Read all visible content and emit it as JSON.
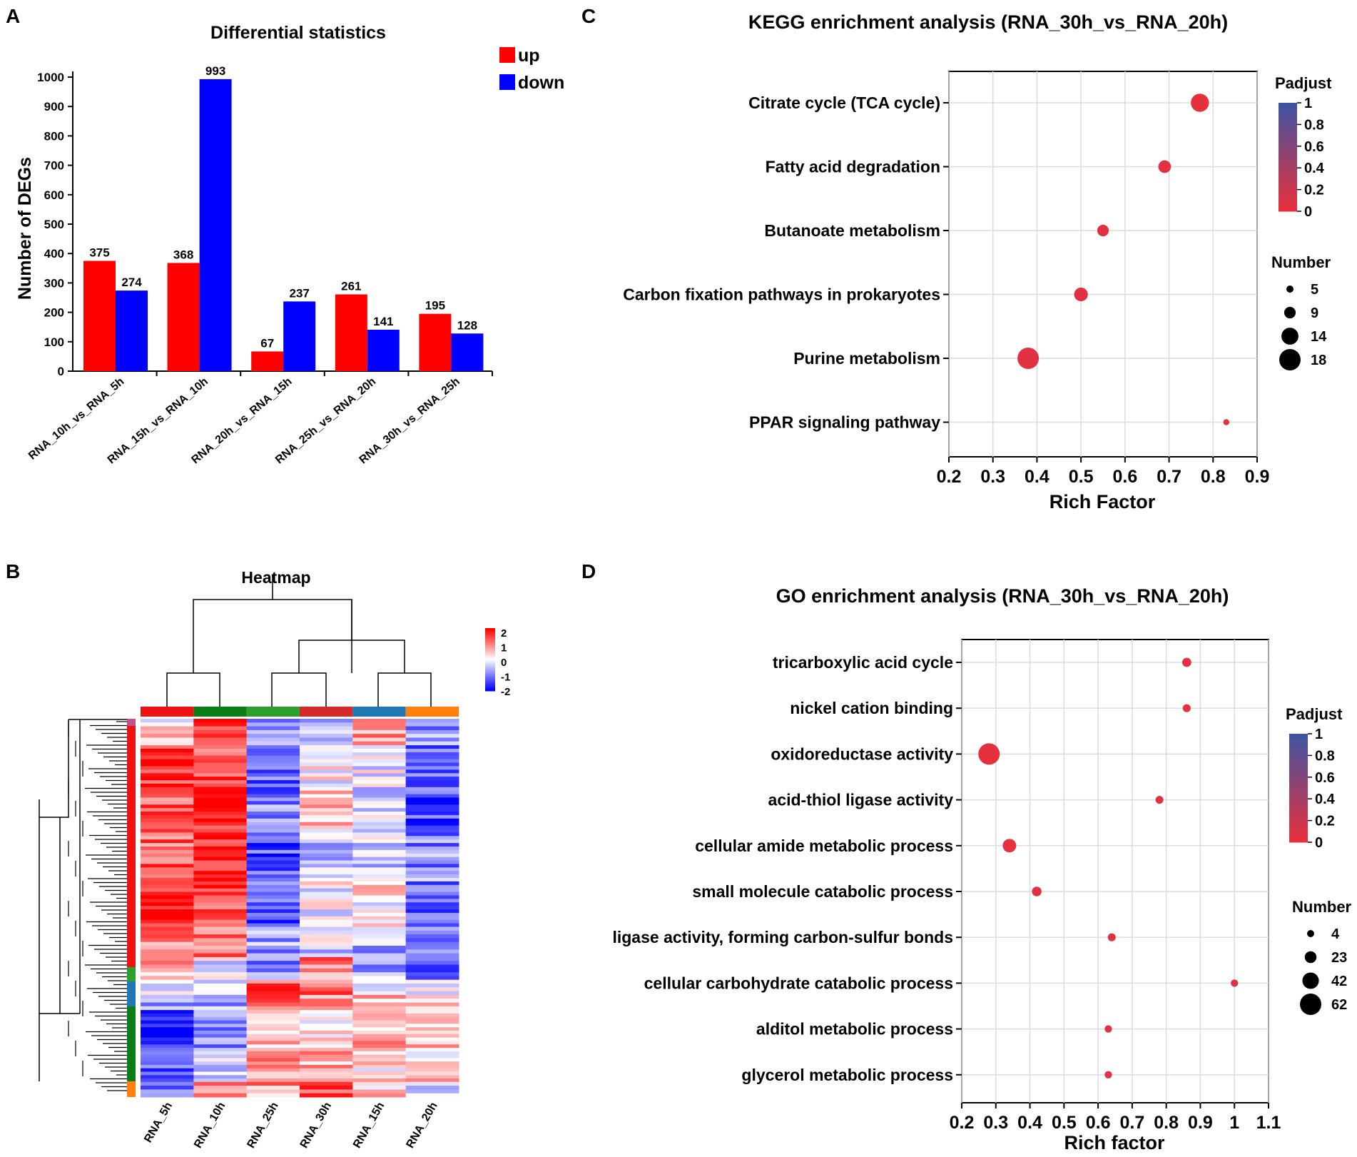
{
  "panels": {
    "a": "A",
    "b": "B",
    "c": "C",
    "d": "D"
  },
  "chart_data": [
    {
      "type": "bar",
      "title": "Differential statistics",
      "xlabel": "",
      "ylabel": "Number of DEGs",
      "ylim": [
        0,
        1000
      ],
      "yticks": [
        0,
        100,
        200,
        300,
        400,
        500,
        600,
        700,
        800,
        900,
        1000
      ],
      "categories": [
        "RNA_10h_vs_RNA_5h",
        "RNA_15h_vs_RNA_10h",
        "RNA_20h_vs_RNA_15h",
        "RNA_25h_vs_RNA_20h",
        "RNA_30h_vs_RNA_25h"
      ],
      "series": [
        {
          "name": "up",
          "color": "#ff0000",
          "values": [
            375,
            368,
            67,
            261,
            195
          ]
        },
        {
          "name": "down",
          "color": "#0000ff",
          "values": [
            274,
            993,
            237,
            141,
            128
          ]
        }
      ],
      "legend": "top-right"
    },
    {
      "type": "heatmap",
      "title": "Heatmap",
      "columns": [
        "RNA_5h",
        "RNA_10h",
        "RNA_25h",
        "RNA_30h",
        "RNA_15h",
        "RNA_20h"
      ],
      "column_group_colors": [
        "#ee1111",
        "#0a7d16",
        "#2e9e2e",
        "#d42a2a",
        "#1f77b4",
        "#ff7f0e"
      ],
      "row_cluster_colors": [
        "#ee1111",
        "#2e9e2e",
        "#1f77b4",
        "#0a7d16",
        "#ff7f0e"
      ],
      "scale": {
        "ticks": [
          "2",
          "1",
          "0",
          "-1",
          "-2"
        ],
        "min": -2,
        "max": 2,
        "colors": [
          "#0000ff",
          "#ffffff",
          "#ff0000"
        ]
      },
      "row_blocks": [
        {
          "share": 0.07,
          "values": [
            0.3,
            1.5,
            -1.0,
            -0.6,
            0.8,
            -0.8
          ]
        },
        {
          "share": 0.12,
          "values": [
            1.7,
            1.4,
            -1.2,
            0.1,
            -0.2,
            -1.3
          ]
        },
        {
          "share": 0.12,
          "values": [
            1.3,
            1.6,
            -1.0,
            0.4,
            -0.4,
            -1.5
          ]
        },
        {
          "share": 0.12,
          "values": [
            1.2,
            1.8,
            -1.4,
            -0.5,
            -0.3,
            -0.9
          ]
        },
        {
          "share": 0.12,
          "values": [
            1.6,
            1.5,
            -1.3,
            -0.1,
            0.2,
            -1.1
          ]
        },
        {
          "share": 0.08,
          "values": [
            1.0,
            1.2,
            -0.8,
            -0.3,
            -0.7,
            -0.8
          ]
        },
        {
          "share": 0.06,
          "values": [
            0.8,
            -0.3,
            -0.9,
            1.0,
            -0.7,
            -1.1
          ]
        },
        {
          "share": 0.04,
          "values": [
            -0.2,
            -0.5,
            1.4,
            1.1,
            -0.4,
            -0.2
          ]
        },
        {
          "share": 0.04,
          "values": [
            -0.8,
            -0.6,
            1.2,
            0.8,
            0.6,
            0.3
          ]
        },
        {
          "share": 0.1,
          "values": [
            -2.0,
            -0.8,
            0.5,
            0.2,
            0.6,
            0.5
          ]
        },
        {
          "share": 0.09,
          "values": [
            -1.4,
            -0.5,
            0.9,
            0.6,
            0.3,
            0.4
          ]
        },
        {
          "share": 0.04,
          "values": [
            -0.9,
            0.9,
            0.8,
            1.4,
            0.4,
            -0.4
          ]
        }
      ]
    },
    {
      "type": "scatter",
      "title": "KEGG enrichment analysis (RNA_30h_vs_RNA_20h)",
      "xlabel": "Rich Factor",
      "xlim": [
        0.2,
        0.9
      ],
      "xticks": [
        "0.2",
        "0.3",
        "0.4",
        "0.5",
        "0.6",
        "0.7",
        "0.8",
        "0.9"
      ],
      "categories": [
        "Citrate cycle (TCA cycle)",
        "Fatty acid degradation",
        "Butanoate metabolism",
        "Carbon fixation pathways in prokaryotes",
        "Purine metabolism",
        "PPAR signaling pathway"
      ],
      "points": [
        {
          "term": "Citrate cycle (TCA cycle)",
          "x": 0.77,
          "number": 15,
          "padjust": 0.02
        },
        {
          "term": "Fatty acid degradation",
          "x": 0.69,
          "number": 10,
          "padjust": 0.03
        },
        {
          "term": "Butanoate metabolism",
          "x": 0.55,
          "number": 9,
          "padjust": 0.04
        },
        {
          "term": "Carbon fixation pathways in prokaryotes",
          "x": 0.5,
          "number": 11,
          "padjust": 0.04
        },
        {
          "term": "Purine metabolism",
          "x": 0.38,
          "number": 18,
          "padjust": 0.05
        },
        {
          "term": "PPAR signaling pathway",
          "x": 0.83,
          "number": 4,
          "padjust": 0.05
        }
      ],
      "color_legend": {
        "title": "Padjust",
        "ticks": [
          "1",
          "0.8",
          "0.6",
          "0.4",
          "0.2",
          "0"
        ],
        "low_color": "#e8303c",
        "high_color": "#3f53a2"
      },
      "size_legend": {
        "title": "Number",
        "values": [
          5,
          9,
          14,
          18
        ],
        "labels": [
          "5",
          "9",
          "14",
          "18"
        ]
      }
    },
    {
      "type": "scatter",
      "title": "GO enrichment analysis (RNA_30h_vs_RNA_20h)",
      "xlabel": "Rich factor",
      "xlim": [
        0.2,
        1.1
      ],
      "xticks": [
        "0.2",
        "0.3",
        "0.4",
        "0.5",
        "0.6",
        "0.7",
        "0.8",
        "0.9",
        "1",
        "1.1"
      ],
      "categories": [
        "tricarboxylic acid cycle",
        "nickel cation binding",
        "oxidoreductase activity",
        "acid-thiol ligase activity",
        "cellular amide metabolic process",
        "small molecule catabolic process",
        "ligase activity, forming carbon-sulfur bonds",
        "cellular carbohydrate catabolic process",
        "alditol metabolic process",
        "glycerol metabolic process"
      ],
      "points": [
        {
          "term": "tricarboxylic acid cycle",
          "x": 0.86,
          "number": 12,
          "padjust": 0.02
        },
        {
          "term": "nickel cation binding",
          "x": 0.86,
          "number": 7,
          "padjust": 0.03
        },
        {
          "term": "oxidoreductase activity",
          "x": 0.28,
          "number": 62,
          "padjust": 0.02
        },
        {
          "term": "acid-thiol ligase activity",
          "x": 0.78,
          "number": 7,
          "padjust": 0.04
        },
        {
          "term": "cellular amide metabolic process",
          "x": 0.34,
          "number": 30,
          "padjust": 0.03
        },
        {
          "term": "small molecule catabolic process",
          "x": 0.42,
          "number": 14,
          "padjust": 0.04
        },
        {
          "term": "ligase activity, forming carbon-sulfur bonds",
          "x": 0.64,
          "number": 7,
          "padjust": 0.05
        },
        {
          "term": "cellular carbohydrate catabolic process",
          "x": 1.0,
          "number": 5,
          "padjust": 0.05
        },
        {
          "term": "alditol metabolic process",
          "x": 0.63,
          "number": 5,
          "padjust": 0.05
        },
        {
          "term": "glycerol metabolic process",
          "x": 0.63,
          "number": 5,
          "padjust": 0.05
        }
      ],
      "color_legend": {
        "title": "Padjust",
        "ticks": [
          "1",
          "0.8",
          "0.6",
          "0.4",
          "0.2",
          "0"
        ],
        "low_color": "#e8303c",
        "high_color": "#3f53a2"
      },
      "size_legend": {
        "title": "Number",
        "values": [
          4,
          23,
          42,
          62
        ],
        "labels": [
          "4",
          "23",
          "42",
          "62"
        ]
      }
    }
  ]
}
